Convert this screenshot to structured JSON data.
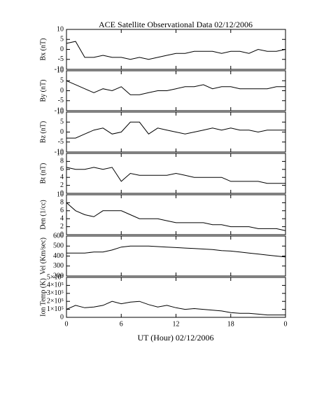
{
  "chart_data": [
    {
      "type": "line",
      "title": "ACE Satellite Observational Data  02/12/2006",
      "ylabel": "Bx (nT)",
      "ylim": [
        -10,
        10
      ],
      "yticks": [
        -10,
        -5,
        0,
        5,
        10
      ],
      "x": [
        0,
        1,
        2,
        3,
        4,
        5,
        6,
        7,
        8,
        9,
        10,
        11,
        12,
        13,
        14,
        15,
        16,
        17,
        18,
        19,
        20,
        21,
        22,
        23,
        24
      ],
      "series": [
        {
          "color": "#000000",
          "values": [
            3,
            4,
            -4,
            -4,
            -3,
            -4,
            -4,
            -5,
            -4,
            -5,
            -4,
            -3,
            -2,
            -2,
            -1,
            -1,
            -1,
            -2,
            -1,
            -1,
            -2,
            0,
            -1,
            -1,
            0
          ]
        }
      ]
    },
    {
      "type": "line",
      "ylabel": "By (nT)",
      "ylim": [
        -10,
        10
      ],
      "yticks": [
        -10,
        -5,
        0,
        5,
        10
      ],
      "x": [
        0,
        1,
        2,
        3,
        4,
        5,
        6,
        7,
        8,
        9,
        10,
        11,
        12,
        13,
        14,
        15,
        16,
        17,
        18,
        19,
        20,
        21,
        22,
        23,
        24
      ],
      "series": [
        {
          "color": "#000000",
          "values": [
            5,
            3,
            1,
            -1,
            1,
            0,
            2,
            -2,
            -2,
            -1,
            0,
            0,
            1,
            2,
            2,
            3,
            1,
            2,
            2,
            1,
            1,
            1,
            1,
            2,
            2
          ]
        }
      ]
    },
    {
      "type": "line",
      "ylabel": "Bz (nT)",
      "ylim": [
        -10,
        10
      ],
      "yticks": [
        -10,
        -5,
        0,
        5,
        10
      ],
      "x": [
        0,
        1,
        2,
        3,
        4,
        5,
        6,
        7,
        8,
        9,
        10,
        11,
        12,
        13,
        14,
        15,
        16,
        17,
        18,
        19,
        20,
        21,
        22,
        23,
        24
      ],
      "series": [
        {
          "color": "#000000",
          "values": [
            -3,
            -3,
            -1,
            1,
            2,
            -1,
            0,
            5,
            5,
            -1,
            2,
            1,
            0,
            -1,
            0,
            1,
            2,
            1,
            2,
            1,
            1,
            0,
            1,
            1,
            1
          ]
        }
      ]
    },
    {
      "type": "line",
      "ylabel": "Bt (nT)",
      "ylim": [
        0,
        10
      ],
      "yticks": [
        0,
        2,
        4,
        6,
        8,
        10
      ],
      "x": [
        0,
        1,
        2,
        3,
        4,
        5,
        6,
        7,
        8,
        9,
        10,
        11,
        12,
        13,
        14,
        15,
        16,
        17,
        18,
        19,
        20,
        21,
        22,
        23,
        24
      ],
      "series": [
        {
          "color": "#000000",
          "values": [
            6.5,
            6,
            6,
            6.5,
            6,
            6.5,
            3,
            5,
            4.5,
            4.5,
            4.5,
            4.5,
            5,
            4.5,
            4,
            4,
            4,
            4,
            3,
            3,
            3,
            3,
            2.5,
            2.5,
            2.5
          ]
        }
      ]
    },
    {
      "type": "line",
      "ylabel": "Den (1/cc)",
      "ylim": [
        0,
        10
      ],
      "yticks": [
        0,
        2,
        4,
        6,
        8,
        10
      ],
      "x": [
        0,
        1,
        2,
        3,
        4,
        5,
        6,
        7,
        8,
        9,
        10,
        11,
        12,
        13,
        14,
        15,
        16,
        17,
        18,
        19,
        20,
        21,
        22,
        23,
        24
      ],
      "series": [
        {
          "color": "#000000",
          "values": [
            8,
            6,
            5,
            4.5,
            6,
            6,
            6,
            5,
            4,
            4,
            4,
            3.5,
            3,
            3,
            3,
            3,
            2.5,
            2.5,
            2,
            2,
            2,
            1.5,
            1.5,
            1.5,
            1
          ]
        }
      ]
    },
    {
      "type": "line",
      "ylabel": "Vel (Km/sec)",
      "ylim": [
        200,
        600
      ],
      "yticks": [
        200,
        300,
        400,
        500,
        600
      ],
      "x": [
        0,
        1,
        2,
        3,
        4,
        5,
        6,
        7,
        8,
        9,
        10,
        11,
        12,
        13,
        14,
        15,
        16,
        17,
        18,
        19,
        20,
        21,
        22,
        23,
        24
      ],
      "series": [
        {
          "color": "#000000",
          "values": [
            430,
            430,
            430,
            440,
            440,
            460,
            490,
            500,
            500,
            500,
            495,
            490,
            485,
            480,
            475,
            470,
            465,
            455,
            450,
            440,
            430,
            420,
            410,
            400,
            390
          ]
        }
      ]
    },
    {
      "type": "line",
      "ylabel": "Ion Temp (K)",
      "xlabel": "UT (Hour)  02/12/2006",
      "ylim": [
        0,
        500000
      ],
      "yticks": [
        0,
        {
          "value": 100000,
          "label": "1×10⁵"
        },
        {
          "value": 200000,
          "label": "2×10⁵"
        },
        {
          "value": 300000,
          "label": "3×10⁵"
        },
        {
          "value": 400000,
          "label": "4×10⁵"
        },
        {
          "value": 500000,
          "label": "5×10⁵"
        }
      ],
      "xlim": [
        0,
        24
      ],
      "xticks": [
        0,
        6,
        12,
        18,
        {
          "value": 24,
          "label": "0"
        }
      ],
      "x": [
        0,
        1,
        2,
        3,
        4,
        5,
        6,
        7,
        8,
        9,
        10,
        11,
        12,
        13,
        14,
        15,
        16,
        17,
        18,
        19,
        20,
        21,
        22,
        23,
        24
      ],
      "series": [
        {
          "color": "#000000",
          "values": [
            100000,
            150000,
            120000,
            130000,
            150000,
            200000,
            170000,
            190000,
            200000,
            160000,
            130000,
            150000,
            120000,
            100000,
            110000,
            100000,
            90000,
            80000,
            60000,
            50000,
            50000,
            40000,
            30000,
            30000,
            30000
          ]
        }
      ]
    }
  ]
}
